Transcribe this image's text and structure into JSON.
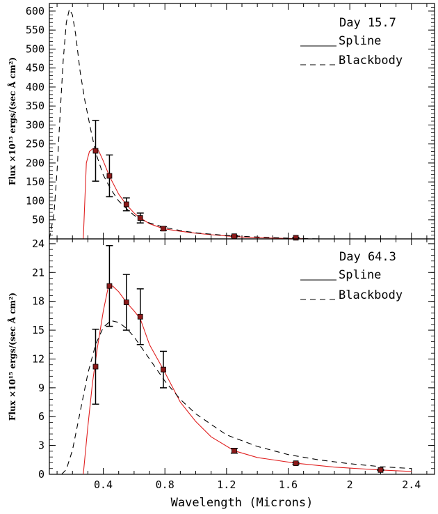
{
  "chart_data": [
    {
      "type": "line",
      "annotation": "Day 15.7",
      "ylabel": "Flux  ×10¹⁵ ergs/(sec Å  cm²)",
      "xlabel": "",
      "xlim": [
        0.05,
        2.55
      ],
      "ylim": [
        0,
        620
      ],
      "x_ticks": [
        0.4,
        0.8,
        1.2,
        1.6,
        2,
        2.4
      ],
      "y_ticks": [
        50,
        100,
        150,
        200,
        250,
        300,
        350,
        400,
        450,
        500,
        550,
        600
      ],
      "y_tick_labels": [
        "50",
        "100",
        "150",
        "200",
        "250",
        "300",
        "350",
        "400",
        "450",
        "500",
        "550",
        "600"
      ],
      "legend": [
        "Spline",
        "Blackbody"
      ],
      "legend_position": "top-right",
      "series": [
        {
          "name": "Spline",
          "style": "solid",
          "color": "#e02020",
          "x": [
            0.27,
            0.29,
            0.31,
            0.33,
            0.35,
            0.37,
            0.4,
            0.44,
            0.5,
            0.55,
            0.6,
            0.63,
            0.7,
            0.79,
            0.9,
            1.0,
            1.1,
            1.25,
            1.4,
            1.65,
            1.75
          ],
          "y": [
            0,
            200,
            230,
            237,
            238,
            232,
            205,
            165,
            118,
            90,
            68,
            58,
            40,
            27,
            20,
            15,
            11,
            6,
            3,
            1,
            0
          ]
        },
        {
          "name": "Blackbody",
          "style": "dashed",
          "color": "#000000",
          "x": [
            0.05,
            0.08,
            0.1,
            0.12,
            0.14,
            0.16,
            0.18,
            0.2,
            0.22,
            0.25,
            0.28,
            0.32,
            0.35,
            0.4,
            0.45,
            0.5,
            0.55,
            0.6,
            0.65,
            0.7,
            0.8,
            0.9,
            1.0,
            1.2,
            1.4,
            1.6,
            1.8
          ],
          "y": [
            0,
            65,
            180,
            330,
            470,
            570,
            605,
            590,
            540,
            440,
            365,
            285,
            228,
            168,
            130,
            100,
            80,
            62,
            50,
            42,
            30,
            22,
            16,
            9,
            5,
            2,
            0
          ]
        }
      ],
      "points": {
        "x": [
          0.35,
          0.44,
          0.55,
          0.64,
          0.79,
          1.25,
          1.65
        ],
        "y": [
          232,
          166,
          91,
          55,
          27,
          7,
          3
        ],
        "err_low": [
          80,
          55,
          17,
          13,
          5,
          2,
          1
        ],
        "err_high": [
          80,
          55,
          17,
          13,
          5,
          2,
          1
        ]
      }
    },
    {
      "type": "line",
      "annotation": "Day 64.3",
      "ylabel": "Flux ×10¹⁵ ergs/(sec Å  cm²)",
      "xlabel": "Wavelength (Microns)",
      "xlim": [
        0.05,
        2.55
      ],
      "ylim": [
        0,
        24.5
      ],
      "x_ticks": [
        0.4,
        0.8,
        1.2,
        1.6,
        2,
        2.4
      ],
      "x_tick_labels": [
        "0.4",
        "0.8",
        "1.2",
        "1.6",
        "2",
        "2.4"
      ],
      "y_ticks": [
        0,
        3,
        6,
        9,
        12,
        15,
        18,
        21,
        24
      ],
      "y_tick_labels": [
        "0",
        "3",
        "6",
        "9",
        "12",
        "15",
        "18",
        "21",
        "24"
      ],
      "legend": [
        "Spline",
        "Blackbody"
      ],
      "legend_position": "top-right",
      "series": [
        {
          "name": "Spline",
          "style": "solid",
          "color": "#e02020",
          "x": [
            0.27,
            0.3,
            0.33,
            0.36,
            0.4,
            0.43,
            0.46,
            0.5,
            0.55,
            0.6,
            0.64,
            0.7,
            0.79,
            0.9,
            1.0,
            1.1,
            1.25,
            1.4,
            1.65,
            1.9,
            2.2,
            2.4
          ],
          "y": [
            0,
            5,
            9.5,
            13,
            17,
            19.3,
            19.6,
            19,
            17.9,
            17,
            16.2,
            13.5,
            10.9,
            7.5,
            5.5,
            3.9,
            2.45,
            1.75,
            1.15,
            0.75,
            0.45,
            0.3
          ]
        },
        {
          "name": "Blackbody",
          "style": "dashed",
          "color": "#000000",
          "x": [
            0.13,
            0.16,
            0.2,
            0.25,
            0.3,
            0.35,
            0.4,
            0.45,
            0.5,
            0.55,
            0.6,
            0.7,
            0.8,
            0.9,
            1.0,
            1.2,
            1.4,
            1.6,
            1.8,
            2.0,
            2.2,
            2.4
          ],
          "y": [
            0,
            0.5,
            2.5,
            6.5,
            10.5,
            13.5,
            15.3,
            16,
            15.8,
            15.2,
            14.3,
            12,
            9.7,
            7.8,
            6.3,
            4.1,
            2.9,
            2.05,
            1.5,
            1.1,
            0.8,
            0.6
          ]
        }
      ],
      "points": {
        "x": [
          0.35,
          0.44,
          0.55,
          0.64,
          0.79,
          1.25,
          1.65,
          2.2
        ],
        "y": [
          11.2,
          19.6,
          17.9,
          16.4,
          10.9,
          2.45,
          1.15,
          0.45
        ],
        "err_low": [
          3.9,
          4.2,
          2.9,
          2.9,
          1.9,
          0.25,
          0.1,
          0.05
        ],
        "err_high": [
          3.9,
          4.2,
          2.9,
          2.9,
          1.9,
          0.25,
          0.1,
          0.05
        ]
      }
    }
  ]
}
